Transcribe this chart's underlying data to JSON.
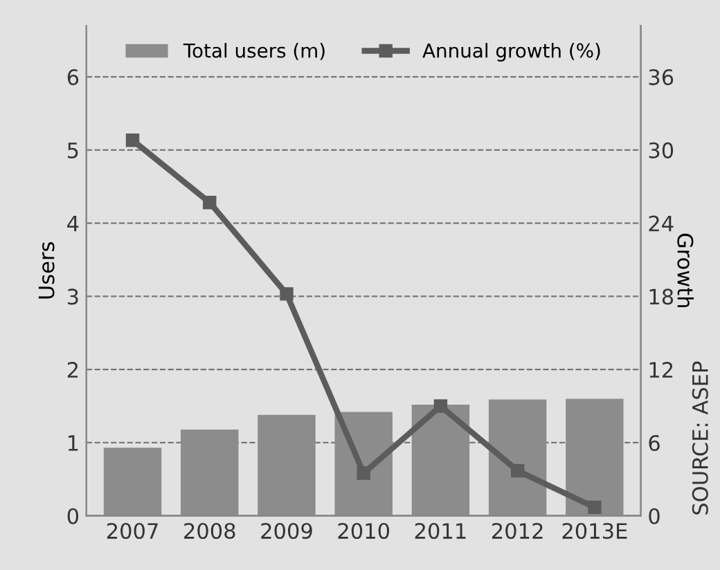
{
  "chart_data": {
    "type": "bar",
    "categories": [
      "2007",
      "2008",
      "2009",
      "2010",
      "2011",
      "2012",
      "2013E"
    ],
    "ylabel": "Users",
    "y2label": "Growth",
    "series": [
      {
        "name": "Total users (m)",
        "color": "#8c8c8c",
        "values": [
          0.93,
          1.18,
          1.38,
          1.42,
          1.52,
          1.59,
          1.6
        ]
      },
      {
        "name": "Annual growth (%)",
        "type": "line",
        "axis": "y2",
        "color": "#5c5c5c",
        "marker": "square",
        "values": [
          30.8,
          25.7,
          18.2,
          3.5,
          9.0,
          3.7,
          0.7
        ]
      }
    ],
    "ylim": [
      0,
      6.7
    ],
    "yticks": [
      0,
      1,
      2,
      3,
      4,
      5,
      6
    ],
    "y2lim": [
      0,
      40.2
    ],
    "y2ticks": [
      0,
      6,
      12,
      18,
      24,
      30,
      36
    ],
    "grid": "y",
    "legend": "top",
    "annotations": [
      "SOURCE: ASEP"
    ]
  }
}
